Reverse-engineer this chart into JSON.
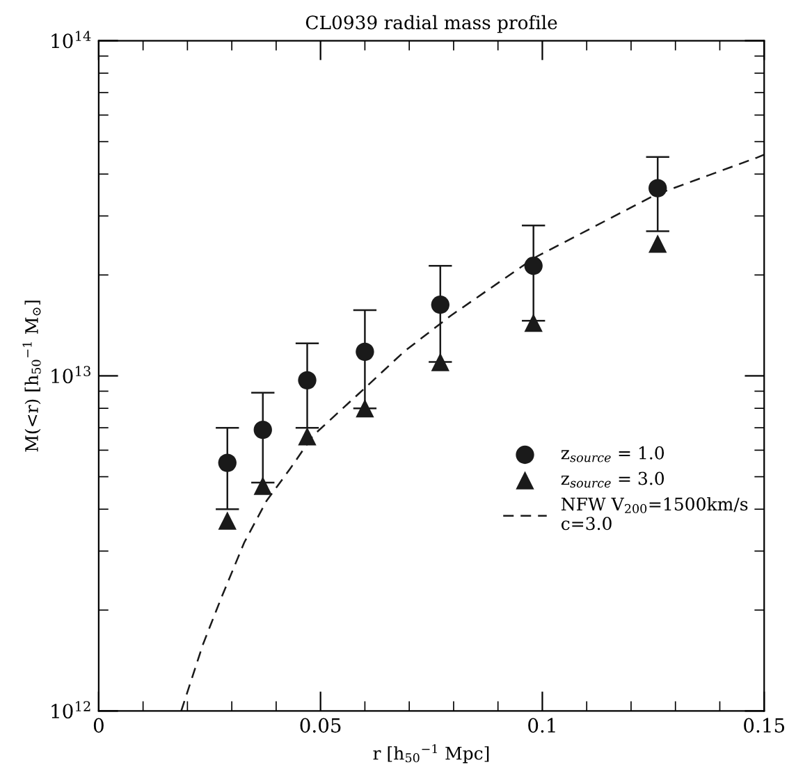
{
  "chart_data": {
    "type": "scatter",
    "title": "CL0939 radial mass profile",
    "xlabel": "r [h$_{50}$$^{−1}$ Mpc]",
    "ylabel": "M(<r) [h$_{50}$$^{−1}$ M$_{⊙}$]",
    "log": "y",
    "xlim": [
      0,
      0.15
    ],
    "ylim": [
      1000000000000.0,
      100000000000000.0
    ],
    "xticks": [
      0,
      0.05,
      0.1,
      0.15,
      {
        "value": 0.01,
        "label": null
      },
      {
        "value": 0.02,
        "label": null
      },
      {
        "value": 0.03,
        "label": null
      },
      {
        "value": 0.04,
        "label": null
      },
      {
        "value": 0.06,
        "label": null
      },
      {
        "value": 0.07,
        "label": null
      },
      {
        "value": 0.08,
        "label": null
      },
      {
        "value": 0.09,
        "label": null
      },
      {
        "value": 0.11,
        "label": null
      },
      {
        "value": 0.12,
        "label": null
      },
      {
        "value": 0.13,
        "label": null
      },
      {
        "value": 0.14,
        "label": null
      }
    ],
    "yticks": [
      {
        "value": 1000000000000.0,
        "label": "10$^{12}$"
      },
      {
        "value": 10000000000000.0,
        "label": "10$^{13}$"
      },
      {
        "value": 100000000000000.0,
        "label": "10$^{14}$"
      },
      {
        "value": 2000000000000.0,
        "label": null
      },
      {
        "value": 3000000000000.0,
        "label": null
      },
      {
        "value": 4000000000000.0,
        "label": null
      },
      {
        "value": 5000000000000.0,
        "label": null
      },
      {
        "value": 6000000000000.0,
        "label": null
      },
      {
        "value": 7000000000000.0,
        "label": null
      },
      {
        "value": 8000000000000.0,
        "label": null
      },
      {
        "value": 9000000000000.0,
        "label": null
      },
      {
        "value": 20000000000000.0,
        "label": null
      },
      {
        "value": 30000000000000.0,
        "label": null
      },
      {
        "value": 40000000000000.0,
        "label": null
      },
      {
        "value": 50000000000000.0,
        "label": null
      },
      {
        "value": 60000000000000.0,
        "label": null
      },
      {
        "value": 70000000000000.0,
        "label": null
      },
      {
        "value": 80000000000000.0,
        "label": null
      },
      {
        "value": 90000000000000.0,
        "label": null
      }
    ],
    "grid": false,
    "legend": "right",
    "series": [
      {
        "name": "z$_{source}$ = 1.0",
        "marker": "circle",
        "color": "#1a1a1a",
        "x": [
          0.029,
          0.037,
          0.047,
          0.06,
          0.077,
          0.098,
          0.126
        ],
        "values": [
          5500000000000.0,
          6900000000000.0,
          9700000000000.0,
          11800000000000.0,
          16300000000000.0,
          21300000000000.0,
          36300000000000.0
        ],
        "errors": [
          [
            4000000000000.0,
            7000000000000.0
          ],
          [
            4800000000000.0,
            8900000000000.0
          ],
          [
            7000000000000.0,
            12500000000000.0
          ],
          [
            8000000000000.0,
            15700000000000.0
          ],
          [
            11000000000000.0,
            21300000000000.0
          ],
          [
            14600000000000.0,
            28100000000000.0
          ],
          [
            27000000000000.0,
            45000000000000.0
          ]
        ]
      },
      {
        "name": "z$_{source}$ = 3.0",
        "marker": "triangle",
        "color": "#1a1a1a",
        "x": [
          0.029,
          0.037,
          0.047,
          0.06,
          0.077,
          0.098,
          0.126
        ],
        "values": [
          3700000000000.0,
          4700000000000.0,
          6600000000000.0,
          8000000000000.0,
          11000000000000.0,
          14400000000000.0,
          24800000000000.0
        ]
      },
      {
        "name": "NFW V$_{200}$=1500km/s\nc=3.0",
        "type": "line",
        "line_style": "dashed",
        "marker": "none",
        "color": "#1a1a1a",
        "x": [
          0.0186,
          0.0235,
          0.0276,
          0.0328,
          0.0378,
          0.0431,
          0.0483,
          0.0586,
          0.0688,
          0.0793,
          0.0982,
          0.1255,
          0.1484,
          0.15
        ],
        "values": [
          1000000000000.0,
          1580000000000.0,
          2170000000000.0,
          3180000000000.0,
          4230000000000.0,
          5270000000000.0,
          6630000000000.0,
          8840000000000.0,
          11800000000000.0,
          15100000000000.0,
          22500000000000.0,
          34700000000000.0,
          44800000000000.0,
          45700000000000.0
        ]
      }
    ]
  }
}
